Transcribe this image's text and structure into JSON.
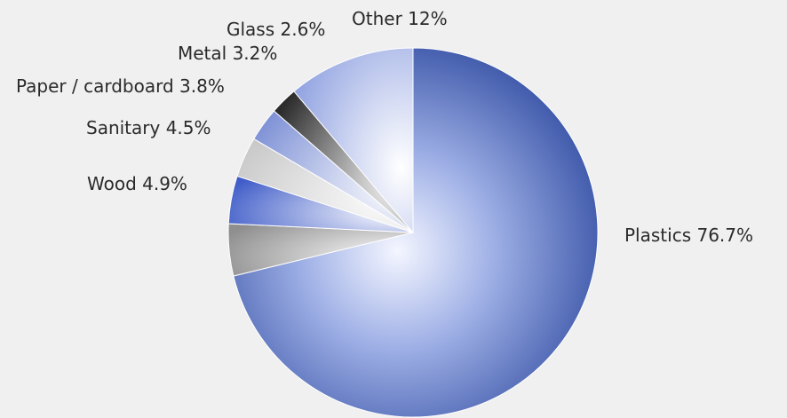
{
  "chart_data": {
    "type": "pie",
    "title": "",
    "slices": [
      {
        "label": "Plastics",
        "value": 76.7,
        "display": "Plastics 76.7%",
        "color": "#0b2a8a"
      },
      {
        "label": "Wood",
        "value": 4.9,
        "display": "Wood 4.9%",
        "color": "#8f8f8f"
      },
      {
        "label": "Sanitary",
        "value": 4.5,
        "display": "Sanitary 4.5%",
        "color": "#3f5cc8"
      },
      {
        "label": "Paper / cardboard",
        "value": 3.8,
        "display": "Paper / cardboard 3.8%",
        "color": "#c9c9c9"
      },
      {
        "label": "Metal",
        "value": 3.2,
        "display": "Metal 3.2%",
        "color": "#7f92d6"
      },
      {
        "label": "Glass",
        "value": 2.6,
        "display": "Glass 2.6%",
        "color": "#2b2b2b"
      },
      {
        "label": "Other",
        "value": 12,
        "display": "Other 12%",
        "color": "#8ea0e0"
      }
    ]
  }
}
